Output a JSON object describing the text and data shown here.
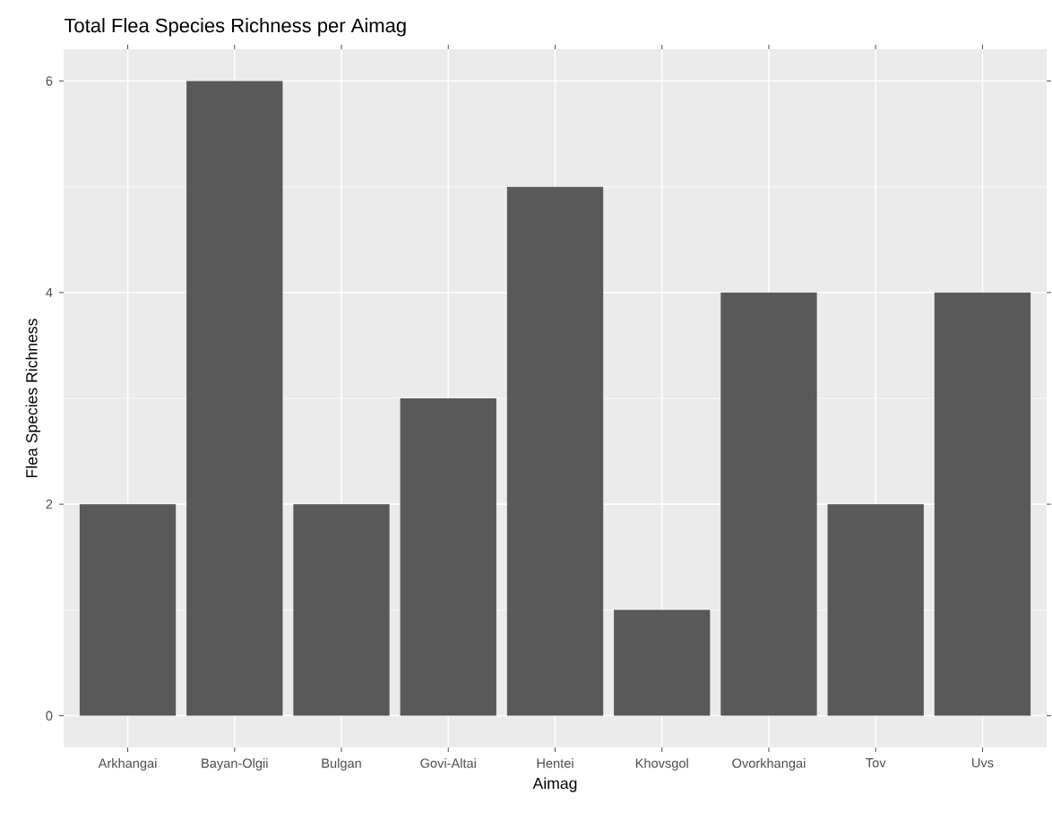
{
  "chart_data": {
    "type": "bar",
    "title": "Total Flea Species Richness per Aimag",
    "xlabel": "Aimag",
    "ylabel": "Flea Species Richness",
    "categories": [
      "Arkhangai",
      "Bayan-Olgii",
      "Bulgan",
      "Govi-Altai",
      "Hentei",
      "Khovsgol",
      "Ovorkhangai",
      "Tov",
      "Uvs"
    ],
    "values": [
      2,
      6,
      2,
      3,
      5,
      1,
      4,
      2,
      4
    ],
    "color": "#595959",
    "ylim": [
      -0.3,
      6.3
    ],
    "yticks": [
      0,
      2,
      4,
      6
    ],
    "grid": true
  }
}
